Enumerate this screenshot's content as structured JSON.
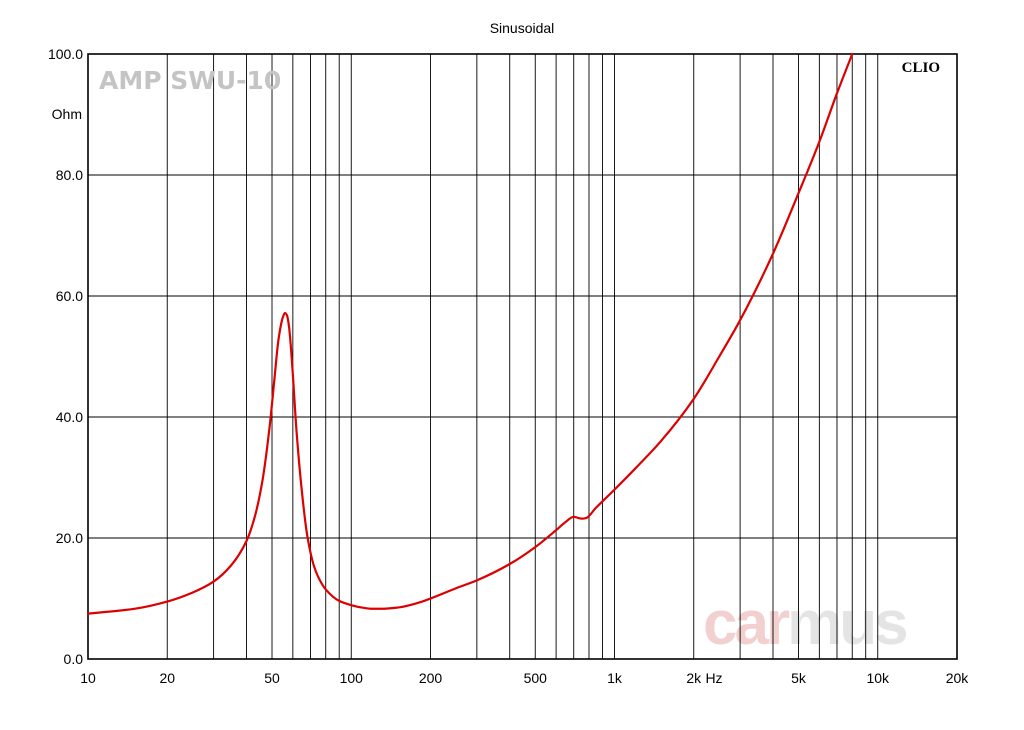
{
  "chart_data": {
    "type": "line",
    "title": "Sinusoidal",
    "device_label": "AMP SWU-10",
    "brand_label": "CLIO",
    "watermark": {
      "part1": "car",
      "part2": "mus",
      "color1": "#f3d0d0",
      "color2": "#e4e4e4"
    },
    "x_scale": "log",
    "xlim": [
      10,
      20000
    ],
    "ylim": [
      0,
      100
    ],
    "x_unit": "Hz",
    "y_unit": "Ohm",
    "grid": true,
    "x_ticks": [
      {
        "value": 10,
        "label": "10"
      },
      {
        "value": 20,
        "label": "20"
      },
      {
        "value": 50,
        "label": "50"
      },
      {
        "value": 100,
        "label": "100"
      },
      {
        "value": 200,
        "label": "200"
      },
      {
        "value": 500,
        "label": "500"
      },
      {
        "value": 1000,
        "label": "1k"
      },
      {
        "value": 2000,
        "label": "2k"
      },
      {
        "value": 5000,
        "label": "5k"
      },
      {
        "value": 10000,
        "label": "10k"
      },
      {
        "value": 20000,
        "label": "20k"
      }
    ],
    "y_ticks": [
      {
        "value": 0,
        "label": "0.0"
      },
      {
        "value": 20,
        "label": "20.0"
      },
      {
        "value": 40,
        "label": "40.0"
      },
      {
        "value": 60,
        "label": "60.0"
      },
      {
        "value": 80,
        "label": "80.0"
      },
      {
        "value": 100,
        "label": "100.0"
      }
    ],
    "colors": {
      "line": "#dd0000",
      "grid": "#000000",
      "frame": "#000000"
    },
    "series": [
      {
        "x": [
          10,
          15,
          20,
          25,
          30,
          35,
          40,
          43,
          46,
          49,
          51,
          53,
          55,
          56,
          57,
          58,
          59,
          60,
          62,
          65,
          68,
          72,
          75,
          80,
          90,
          100,
          110,
          120,
          130,
          150,
          180,
          200,
          250,
          300,
          400,
          500,
          600,
          650,
          700,
          750,
          780,
          850,
          1000,
          1200,
          1500,
          2000,
          2500,
          3000,
          4000,
          5000,
          6000,
          7000,
          8000
        ],
        "y": [
          7.5,
          8.3,
          9.5,
          11.0,
          12.8,
          15.5,
          19.5,
          23.5,
          29.5,
          38.5,
          46.0,
          53.0,
          56.5,
          57.2,
          56.8,
          55.0,
          51.5,
          47.0,
          37.5,
          27.5,
          20.5,
          15.5,
          13.5,
          11.5,
          9.6,
          8.9,
          8.5,
          8.3,
          8.3,
          8.5,
          9.3,
          10.0,
          11.7,
          13.0,
          15.7,
          18.5,
          21.3,
          22.6,
          23.5,
          23.2,
          23.3,
          25.0,
          28.0,
          31.5,
          36.0,
          43.0,
          50.0,
          56.0,
          67.0,
          77.0,
          85.5,
          93.5,
          100.0
        ]
      }
    ]
  }
}
